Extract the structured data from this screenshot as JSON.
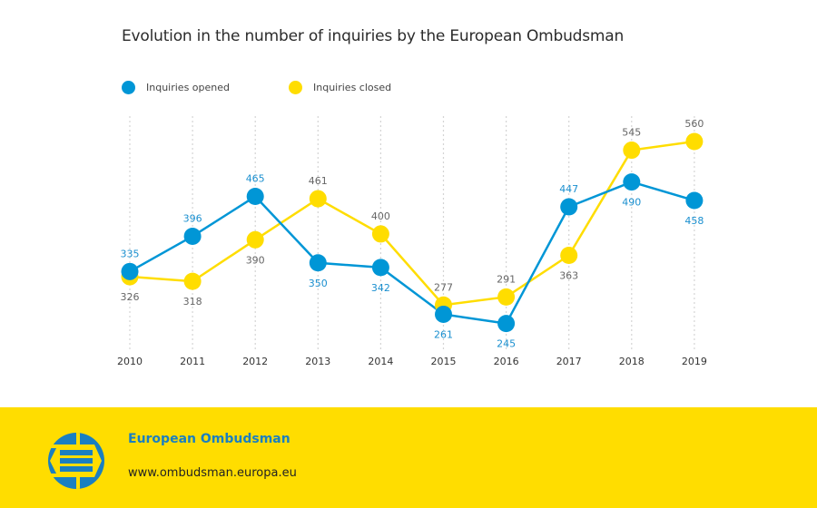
{
  "chart_data": {
    "type": "line",
    "title": "Evolution in the number of inquiries by the European Ombudsman",
    "xlabel": "",
    "ylabel": "",
    "x": [
      "2010",
      "2011",
      "2012",
      "2013",
      "2014",
      "2015",
      "2016",
      "2017",
      "2018",
      "2019"
    ],
    "series": [
      {
        "name": "Inquiries opened",
        "color": "#0096d6",
        "values": [
          335,
          396,
          465,
          350,
          342,
          261,
          245,
          447,
          490,
          458
        ]
      },
      {
        "name": "Inquiries closed",
        "color": "#ffdd00",
        "values": [
          326,
          318,
          390,
          461,
          400,
          277,
          291,
          363,
          545,
          560
        ]
      }
    ],
    "ylim": [
      200,
      600
    ],
    "grid": "vertical dotted",
    "legend": "top-left",
    "data_labels": true
  },
  "colors": {
    "opened": "#0096d6",
    "closed": "#ffdd00",
    "opened_label": "#1a8fcf",
    "closed_label": "#666666",
    "footer_bg": "#ffdd00",
    "brand_blue": "#1a7fc1"
  },
  "footer": {
    "name": "European Ombudsman",
    "url": "www.ombudsman.europa.eu",
    "logo_icon": "european-ombudsman-logo"
  }
}
